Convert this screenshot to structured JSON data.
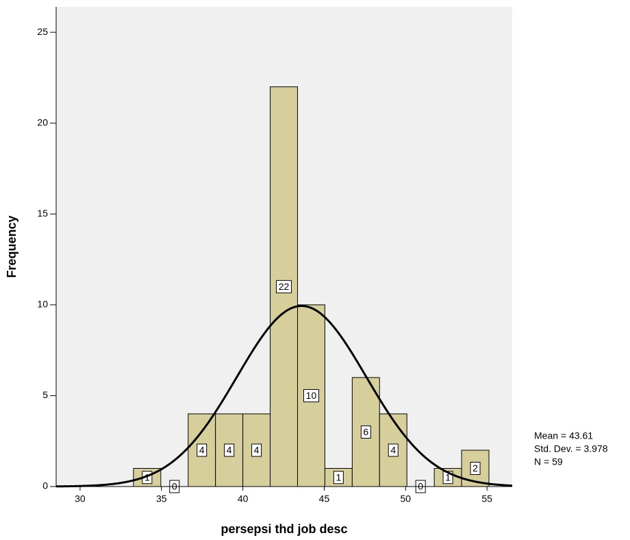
{
  "chart_data": {
    "type": "histogram",
    "x_label": "persepsi thd job desc",
    "y_label": "Frequency",
    "bins": [
      33.28,
      34.96,
      36.64,
      38.32,
      40.0,
      41.68,
      43.36,
      45.04,
      46.72,
      48.4,
      50.08,
      51.76,
      53.44,
      55.12
    ],
    "values": [
      1,
      0,
      4,
      4,
      4,
      22,
      10,
      1,
      6,
      4,
      0,
      1,
      2
    ],
    "color": "#d6cf9c",
    "xlim": [
      28.53,
      56.55
    ],
    "ylim": [
      0,
      26.4
    ],
    "xticks": [
      30,
      35,
      40,
      45,
      50,
      55
    ],
    "yticks": [
      0,
      5,
      10,
      15,
      20,
      25
    ],
    "stats": [
      {
        "value": 43.61,
        "label": "Mean = 43.61"
      },
      {
        "value": 3.978,
        "label": "Std. Dev. = 3.978"
      },
      {
        "value": 59,
        "label": "N = 59"
      }
    ]
  }
}
